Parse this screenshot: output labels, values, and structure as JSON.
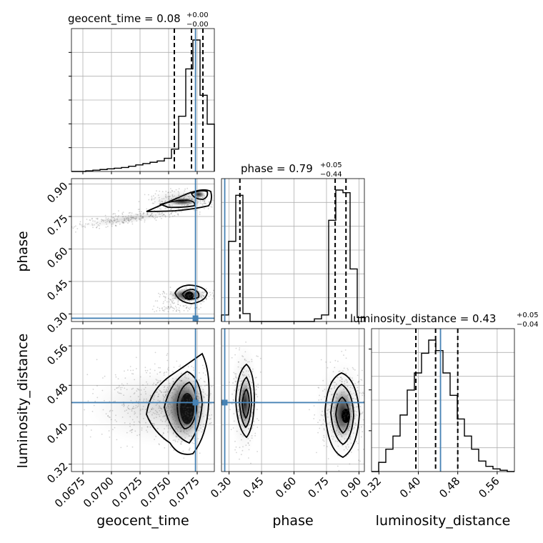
{
  "chart_data": {
    "type": "scatter",
    "subtype": "corner",
    "parameters": [
      {
        "name": "geocent_time",
        "label": "geocent_time",
        "range": [
          0.0665,
          0.079
        ],
        "ticks": [
          0.0675,
          0.07,
          0.0725,
          0.075,
          0.0775
        ],
        "tick_labels": [
          "0.0675",
          "0.0700",
          "0.0725",
          "0.0750",
          "0.0775"
        ],
        "truth": 0.07735,
        "quantiles": [
          0.0755,
          0.077,
          0.078
        ],
        "title_text": "geocent_time = 0.08",
        "title_upper": "+0.00",
        "title_lower": "−0.00",
        "hist_edges": [
          0.0665,
          0.067125,
          0.06775,
          0.068375,
          0.069,
          0.069625,
          0.07025,
          0.070875,
          0.0715,
          0.072125,
          0.07275,
          0.073375,
          0.074,
          0.074625,
          0.07525,
          0.075875,
          0.0765,
          0.077125,
          0.07775,
          0.078375,
          0.079
        ],
        "hist_counts": [
          0,
          0,
          0.005,
          0.01,
          0.015,
          0.02,
          0.025,
          0.03,
          0.04,
          0.05,
          0.06,
          0.07,
          0.08,
          0.1,
          0.17,
          0.42,
          0.78,
          1.0,
          0.58,
          0.36
        ]
      },
      {
        "name": "phase",
        "label": "phase",
        "range": [
          0.265,
          0.925
        ],
        "ticks": [
          0.3,
          0.45,
          0.6,
          0.75,
          0.9
        ],
        "tick_labels": [
          "0.30",
          "0.45",
          "0.60",
          "0.75",
          "0.90"
        ],
        "truth": 0.28,
        "quantiles": [
          0.35,
          0.79,
          0.84
        ],
        "title_text": "phase = 0.79",
        "title_upper": "+0.05",
        "title_lower": "−0.44",
        "hist_edges": [
          0.265,
          0.298,
          0.331,
          0.364,
          0.397,
          0.43,
          0.463,
          0.496,
          0.529,
          0.562,
          0.595,
          0.628,
          0.661,
          0.694,
          0.727,
          0.76,
          0.793,
          0.826,
          0.859,
          0.892,
          0.925
        ],
        "hist_counts": [
          0.05,
          0.61,
          0.96,
          0.06,
          0,
          0,
          0,
          0,
          0,
          0,
          0,
          0,
          0,
          0.02,
          0.05,
          0.77,
          1.0,
          0.98,
          0.4,
          0.03
        ]
      },
      {
        "name": "luminosity_distance",
        "label": "luminosity_distance",
        "range": [
          0.305,
          0.595
        ],
        "ticks": [
          0.32,
          0.4,
          0.48,
          0.56
        ],
        "tick_labels": [
          "0.32",
          "0.40",
          "0.48",
          "0.56"
        ],
        "truth": 0.445,
        "quantiles": [
          0.395,
          0.435,
          0.48
        ],
        "title_text": "luminosity_distance = 0.43",
        "title_upper": "+0.05",
        "title_lower": "−0.04",
        "hist_edges": [
          0.305,
          0.3195,
          0.334,
          0.3485,
          0.363,
          0.3775,
          0.392,
          0.4065,
          0.421,
          0.4355,
          0.45,
          0.4645,
          0.479,
          0.4935,
          0.508,
          0.5225,
          0.537,
          0.5515,
          0.566,
          0.5805,
          0.595
        ],
        "hist_counts": [
          0.0,
          0.07,
          0.17,
          0.27,
          0.43,
          0.62,
          0.75,
          0.9,
          1.0,
          0.92,
          0.75,
          0.58,
          0.4,
          0.27,
          0.17,
          0.08,
          0.04,
          0.02,
          0.01,
          0
        ]
      }
    ],
    "scatter_samples": [
      {
        "x": 0.0765,
        "y": 0.36,
        "z": 0.44
      },
      {
        "x": 0.0772,
        "y": 0.84,
        "z": 0.43
      },
      {
        "x": 0.076,
        "y": 0.81,
        "z": 0.46
      },
      {
        "x": 0.074,
        "y": 0.79,
        "z": 0.42
      }
    ],
    "grid": true
  }
}
